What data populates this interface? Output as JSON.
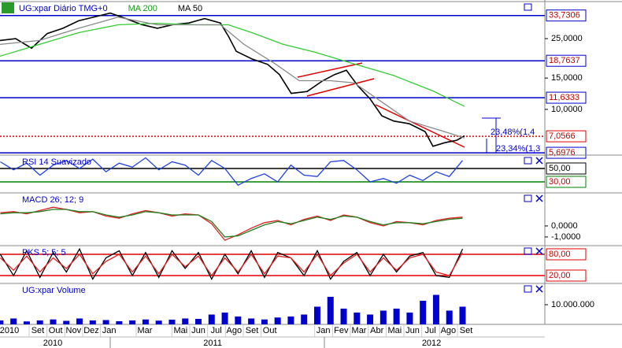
{
  "chart_data": [
    {
      "type": "line",
      "log_scale": true,
      "xlim": [
        -1.117,
        29.41
      ],
      "ylim": [
        5.53,
        40.4
      ],
      "yticks": [
        {
          "value": 25,
          "label": "25,0000"
        },
        {
          "value": 15,
          "label": "15,0000"
        },
        {
          "value": 10,
          "label": "10,0000"
        }
      ],
      "levels": [
        {
          "value": 33.7306,
          "label": "33,7306",
          "color": "#0000cc",
          "style": "solid"
        },
        {
          "value": 18.7637,
          "label": "18,7637",
          "color": "#0000cc",
          "style": "solid"
        },
        {
          "value": 11.6333,
          "label": "11,6333",
          "color": "#0000cc",
          "style": "solid"
        },
        {
          "value": 7.0566,
          "label": "7,0566",
          "color": "#e00000",
          "style": "dotted"
        },
        {
          "value": 5.6976,
          "label": "5,6976",
          "color": "#0000cc",
          "style": "solid"
        }
      ],
      "annotations": [
        "23,48%(1,4",
        "23,34%(1,3"
      ],
      "series": [
        {
          "name": "UG:xpar Diário TMG+0",
          "color": "#000000",
          "x": [
            -1.12,
            -0.24,
            0.65,
            1.53,
            2.41,
            3.29,
            4.18,
            5.06,
            5.94,
            6.82,
            7.7,
            8.59,
            9.47,
            10.35,
            11.23,
            11.68,
            12.12,
            13,
            13.88,
            14.54,
            15.2,
            16.09,
            16.97,
            17.63,
            18.29,
            18.95,
            19.61,
            20.28,
            20.94,
            21.82,
            22.7,
            23.14,
            23.81,
            24.47,
            24.91
          ],
          "values": [
            24.4,
            25,
            22.1,
            26.7,
            28.6,
            31.5,
            33.1,
            34.8,
            32.4,
            30,
            28.6,
            30,
            30.6,
            32.4,
            30.6,
            25.8,
            21.2,
            19.2,
            17.9,
            15.7,
            12.3,
            12.6,
            14.5,
            15.7,
            16.6,
            13.5,
            11.5,
            9.2,
            8.6,
            8.3,
            7.5,
            6.2,
            6.5,
            6.7,
            7.1
          ]
        },
        {
          "name": "MA 200",
          "color": "#33cc33",
          "x": [
            -1.12,
            1.09,
            3.29,
            5.5,
            7.7,
            9.91,
            11.68,
            13,
            14.76,
            16.53,
            18.73,
            20.94,
            23.14,
            24.91
          ],
          "values": [
            19.9,
            23.2,
            27,
            29.9,
            30.5,
            29.9,
            29.9,
            27,
            23.2,
            21,
            18,
            15.5,
            12.7,
            10.4
          ]
        },
        {
          "name": "MA 50",
          "color": "#888888",
          "x": [
            -1.12,
            1.09,
            3.29,
            5.5,
            7.7,
            9.91,
            11.23,
            12.56,
            14.32,
            15.65,
            17.41,
            18.73,
            20.06,
            21.82,
            23.58,
            24.91
          ],
          "values": [
            23.2,
            24.4,
            28.6,
            33,
            29.9,
            29.9,
            29.9,
            23.2,
            18,
            14.5,
            14.5,
            14.1,
            11.4,
            8.6,
            7.6,
            6.9
          ]
        }
      ]
    },
    {
      "type": "line",
      "xlim": [
        -1.117,
        29.41
      ],
      "ylim": [
        13.5,
        70
      ],
      "levels": [
        {
          "value": 50,
          "label": "50,00",
          "color": "#000000",
          "style": "solid"
        },
        {
          "value": 30,
          "label": "30,00",
          "color": "#008000",
          "style": "solid"
        }
      ],
      "x": [
        -1.1,
        -0.36,
        0.38,
        1.12,
        1.86,
        2.6,
        3.34,
        4.08,
        4.82,
        5.56,
        6.3,
        7.04,
        7.78,
        8.52,
        9.26,
        10,
        10.74,
        11.48,
        12.22,
        12.96,
        13.7,
        14.44,
        15.18,
        15.92,
        16.66,
        17.4,
        18.14,
        18.88,
        19.62,
        20.36,
        21.1,
        21.84,
        22.58,
        23.32,
        24.06,
        24.8
      ],
      "series": [
        {
          "name": "RSI 14 Suavizado",
          "color": "#2040e0",
          "values": [
            60,
            48,
            58,
            40,
            55,
            62,
            50,
            64,
            45,
            58,
            52,
            66,
            48,
            60,
            55,
            40,
            62,
            50,
            25,
            35,
            42,
            30,
            55,
            40,
            38,
            60,
            62,
            48,
            30,
            35,
            28,
            40,
            32,
            45,
            38,
            62
          ]
        }
      ]
    },
    {
      "type": "line",
      "xlim": [
        -1.117,
        29.41
      ],
      "ylim": [
        -1.79,
        3
      ],
      "yticks": [
        {
          "value": 0,
          "label": "0,0000"
        },
        {
          "value": -1,
          "label": "-1,0000"
        }
      ],
      "x": [
        -1.1,
        -0.36,
        0.38,
        1.12,
        1.86,
        2.6,
        3.34,
        4.08,
        4.82,
        5.56,
        6.3,
        7.04,
        7.78,
        8.52,
        9.26,
        10,
        10.74,
        11.48,
        12.22,
        12.96,
        13.7,
        14.44,
        15.18,
        15.92,
        16.66,
        17.4,
        18.14,
        18.88,
        19.62,
        20.36,
        21.1,
        21.84,
        22.58,
        23.32,
        24.06,
        24.8
      ],
      "series": [
        {
          "name": "MACD 26; 12; 9",
          "color": "#e02020",
          "values": [
            1.2,
            1.3,
            1.1,
            1.4,
            1.7,
            1.5,
            1.2,
            1.3,
            0.9,
            0.7,
            1.1,
            1.4,
            1.2,
            0.9,
            1.1,
            1.0,
            0.2,
            -1.3,
            -0.8,
            -0.2,
            0.3,
            0.5,
            0.1,
            0.6,
            0.9,
            0.5,
            1.0,
            0.8,
            0.3,
            0.0,
            0.4,
            0.3,
            0.1,
            0.5,
            0.7,
            0.8
          ]
        },
        {
          "color": "#208020",
          "values": [
            1.1,
            1.2,
            1.2,
            1.3,
            1.5,
            1.5,
            1.3,
            1.3,
            1.0,
            0.8,
            1.0,
            1.3,
            1.2,
            1.0,
            1.0,
            1.0,
            0.4,
            -1.0,
            -0.9,
            -0.4,
            0.1,
            0.4,
            0.2,
            0.5,
            0.8,
            0.6,
            0.9,
            0.8,
            0.4,
            0.1,
            0.3,
            0.3,
            0.2,
            0.4,
            0.6,
            0.7
          ]
        }
      ]
    },
    {
      "type": "line",
      "xlim": [
        -1.117,
        29.41
      ],
      "ylim": [
        -2.2,
        104.4
      ],
      "levels": [
        {
          "value": 80,
          "label": "80,00",
          "color": "#e00000",
          "style": "solid"
        },
        {
          "value": 20,
          "label": "20,00",
          "color": "#e00000",
          "style": "solid"
        }
      ],
      "x": [
        -1.1,
        -0.36,
        0.38,
        1.12,
        1.86,
        2.6,
        3.34,
        4.08,
        4.82,
        5.56,
        6.3,
        7.04,
        7.78,
        8.52,
        9.26,
        10,
        10.74,
        11.48,
        12.22,
        12.96,
        13.7,
        14.44,
        15.18,
        15.92,
        16.66,
        17.4,
        18.14,
        18.88,
        19.62,
        20.36,
        21.1,
        21.84,
        22.58,
        23.32,
        24.06,
        24.8
      ],
      "series": [
        {
          "name": "PKS 5; 5; 5",
          "color": "#000000",
          "values": [
            80,
            20,
            90,
            15,
            85,
            30,
            95,
            10,
            70,
            90,
            20,
            85,
            15,
            90,
            40,
            85,
            10,
            80,
            25,
            90,
            15,
            85,
            70,
            20,
            90,
            10,
            60,
            85,
            20,
            80,
            30,
            75,
            85,
            20,
            15,
            95
          ]
        },
        {
          "color": "#e02020",
          "values": [
            70,
            35,
            75,
            30,
            70,
            40,
            80,
            25,
            60,
            80,
            30,
            75,
            25,
            80,
            45,
            75,
            20,
            70,
            30,
            80,
            25,
            75,
            70,
            30,
            80,
            20,
            55,
            80,
            30,
            70,
            35,
            70,
            80,
            30,
            20,
            85
          ]
        }
      ]
    },
    {
      "type": "bar",
      "xlim": [
        -1.117,
        29.41
      ],
      "ylim": [
        0,
        20800000
      ],
      "yticks": [
        {
          "value": 10000000,
          "label": "10.000.000"
        }
      ],
      "x": [
        -1.1,
        -0.36,
        0.38,
        1.12,
        1.86,
        2.6,
        3.34,
        4.08,
        4.82,
        5.56,
        6.3,
        7.04,
        7.78,
        8.52,
        9.26,
        10,
        10.74,
        11.48,
        12.22,
        12.96,
        13.7,
        14.44,
        15.18,
        15.92,
        16.66,
        17.4,
        18.14,
        18.88,
        19.62,
        20.36,
        21.1,
        21.84,
        22.58,
        23.32,
        24.06,
        24.8
      ],
      "series": [
        {
          "name": "UG:xpar Volume",
          "color": "#0000cc",
          "values": [
            2000000,
            3000000,
            1500000,
            2000000,
            2500000,
            1800000,
            3000000,
            2000000,
            2200000,
            1600000,
            2000000,
            2500000,
            1900000,
            2400000,
            3000000,
            2800000,
            5000000,
            6000000,
            4000000,
            3000000,
            2500000,
            3500000,
            4000000,
            5000000,
            9000000,
            14000000,
            8000000,
            6000000,
            5000000,
            7000000,
            8000000,
            6000000,
            12000000,
            15000000,
            7000000,
            9000000
          ]
        }
      ],
      "xticks": [
        {
          "value": -0.9,
          "label": "2010"
        },
        {
          "value": 1,
          "label": "Set"
        },
        {
          "value": 2,
          "label": "Out"
        },
        {
          "value": 3,
          "label": "Nov"
        },
        {
          "value": 4,
          "label": "Dez"
        },
        {
          "value": 5,
          "label": "Jan"
        },
        {
          "value": 7,
          "label": "Mar"
        },
        {
          "value": 9,
          "label": "Mai"
        },
        {
          "value": 10,
          "label": "Jun"
        },
        {
          "value": 11,
          "label": "Jul"
        },
        {
          "value": 12,
          "label": "Ago"
        },
        {
          "value": 13,
          "label": "Set"
        },
        {
          "value": 14,
          "label": "Out"
        },
        {
          "value": 17,
          "label": "Jan"
        },
        {
          "value": 18,
          "label": "Fev"
        },
        {
          "value": 19,
          "label": "Mar"
        },
        {
          "value": 20,
          "label": "Abr"
        },
        {
          "value": 21,
          "label": "Mai"
        },
        {
          "value": 22,
          "label": "Jun"
        },
        {
          "value": 23,
          "label": "Jul"
        },
        {
          "value": 24,
          "label": "Ago"
        },
        {
          "value": 25,
          "label": "Set"
        }
      ],
      "year_labels": [
        {
          "value": 1.84,
          "label": "2010"
        },
        {
          "value": 10.8,
          "label": "2011"
        },
        {
          "value": 23.06,
          "label": "2012"
        }
      ]
    }
  ]
}
